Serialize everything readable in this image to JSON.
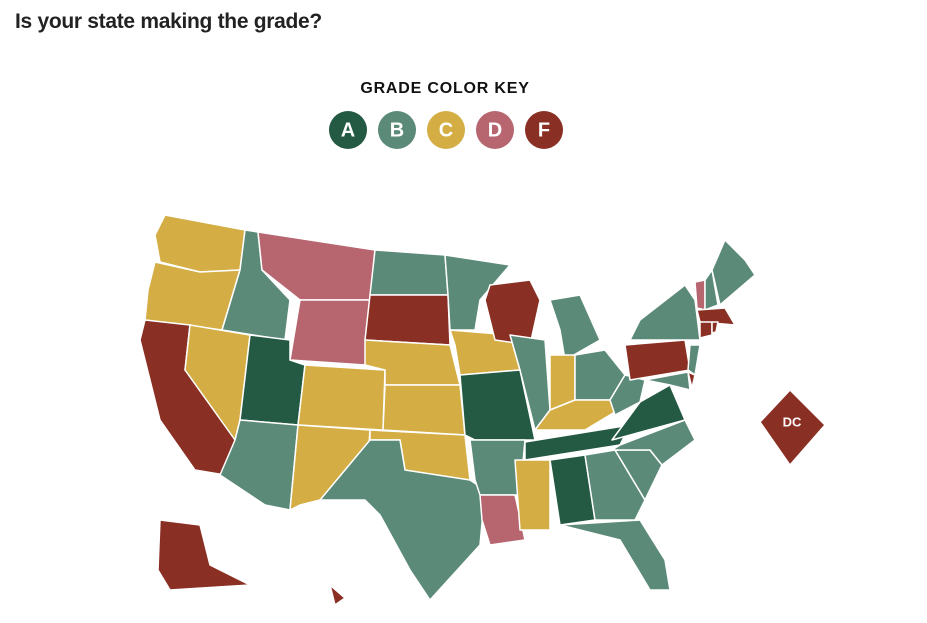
{
  "header": {
    "title": "Is your state making the grade?"
  },
  "key": {
    "title": "GRADE COLOR KEY",
    "grades": [
      {
        "letter": "A",
        "color": "#245a44"
      },
      {
        "letter": "B",
        "color": "#5b8a78"
      },
      {
        "letter": "C",
        "color": "#d4ae45"
      },
      {
        "letter": "D",
        "color": "#b76670"
      },
      {
        "letter": "F",
        "color": "#8a2f23"
      }
    ]
  },
  "map": {
    "dc_label": "DC",
    "regions": {
      "WA": "C",
      "OR": "C",
      "CA": "F",
      "NV": "C",
      "ID": "B",
      "MT": "D",
      "WY": "D",
      "UT": "A",
      "AZ": "B",
      "CO": "C",
      "NM": "C",
      "ND": "B",
      "SD": "F",
      "NE": "C",
      "KS": "C",
      "OK": "C",
      "TX": "B",
      "MN": "B",
      "IA": "C",
      "MO": "A",
      "AR": "B",
      "LA": "D",
      "WI": "F",
      "IL": "B",
      "MI": "B",
      "IN": "C",
      "OH": "B",
      "KY": "C",
      "TN": "A",
      "MS": "C",
      "AL": "A",
      "GA": "B",
      "FL": "B",
      "SC": "B",
      "NC": "B",
      "VA": "A",
      "WV": "B",
      "PA": "F",
      "NY": "B",
      "NJ": "B",
      "DE": "F",
      "MD": "B",
      "VT": "D",
      "NH": "B",
      "ME": "B",
      "MA": "F",
      "CT": "F",
      "RI": "F",
      "AK": "F",
      "HI": "F",
      "DC": "F"
    }
  }
}
